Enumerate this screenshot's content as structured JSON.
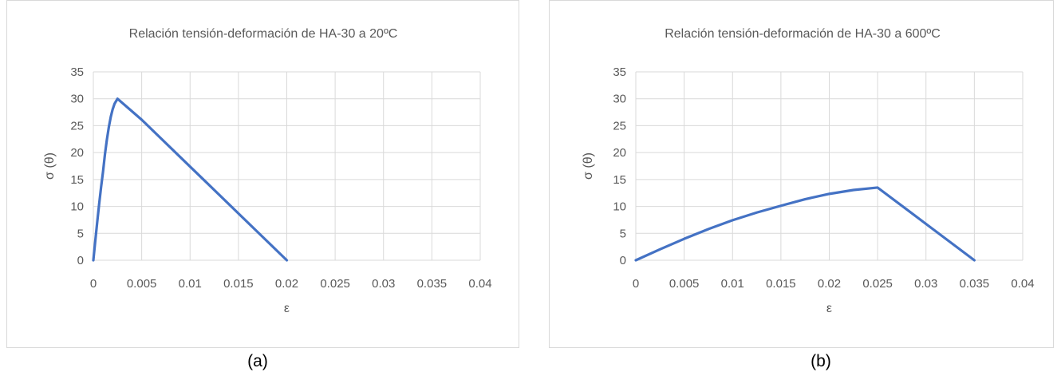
{
  "chart_data": [
    {
      "type": "line",
      "title": "Relación tensión-deformación de HA-30 a 20ºC",
      "xlabel": "ε",
      "ylabel": "σ (θ)",
      "xlim": [
        0,
        0.04
      ],
      "ylim": [
        0,
        35
      ],
      "x_ticks": [
        "0",
        "0.005",
        "0.01",
        "0.015",
        "0.02",
        "0.025",
        "0.03",
        "0.035",
        "0.04"
      ],
      "y_ticks": [
        "0",
        "5",
        "10",
        "15",
        "20",
        "25",
        "30",
        "35"
      ],
      "grid": true,
      "color": "#4472C4",
      "series": [
        {
          "x": [
            0,
            0.0002,
            0.0004,
            0.0006,
            0.0008,
            0.001,
            0.0012,
            0.0014,
            0.0016,
            0.0018,
            0.002,
            0.0022,
            0.0025,
            0.005,
            0.01,
            0.015,
            0.02
          ],
          "y": [
            0,
            3.57,
            7.07,
            10.43,
            13.57,
            16.43,
            19.68,
            22.4,
            24.72,
            26.61,
            28.06,
            29.1,
            30,
            26.1,
            17.4,
            8.7,
            0
          ]
        }
      ]
    },
    {
      "type": "line",
      "title": "Relación tensión-deformación de HA-30 a 600ºC",
      "xlabel": "ε",
      "ylabel": "σ (θ)",
      "xlim": [
        0,
        0.04
      ],
      "ylim": [
        0,
        35
      ],
      "x_ticks": [
        "0",
        "0.005",
        "0.01",
        "0.015",
        "0.02",
        "0.025",
        "0.03",
        "0.035",
        "0.04"
      ],
      "y_ticks": [
        "0",
        "5",
        "10",
        "15",
        "20",
        "25",
        "30",
        "35"
      ],
      "grid": true,
      "color": "#4472C4",
      "series": [
        {
          "x": [
            0,
            0.0025,
            0.005,
            0.0075,
            0.01,
            0.0125,
            0.015,
            0.0175,
            0.02,
            0.0225,
            0.025,
            0.03,
            0.035
          ],
          "y": [
            0,
            2.03,
            3.98,
            5.79,
            7.43,
            8.86,
            10.12,
            11.34,
            12.33,
            13.05,
            13.5,
            6.75,
            0
          ]
        }
      ]
    }
  ],
  "captions": [
    "(a)",
    "(b)"
  ]
}
